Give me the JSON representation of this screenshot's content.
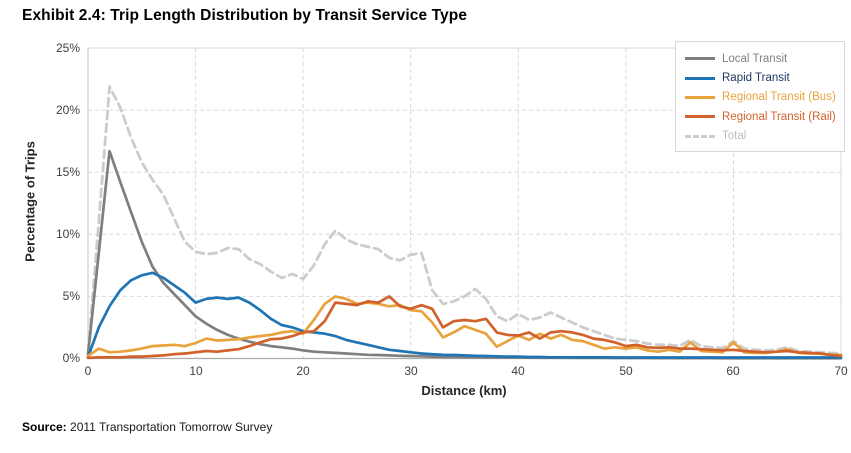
{
  "header": {
    "title": "Exhibit 2.4: Trip Length Distribution by Transit Service Type"
  },
  "axes": {
    "y": {
      "title": "Percentage of Trips",
      "tick_labels": [
        "0%",
        "5%",
        "10%",
        "15%",
        "20%",
        "25%"
      ]
    },
    "x": {
      "title": "Distance (km)",
      "tick_labels": [
        "0",
        "10",
        "20",
        "30",
        "40",
        "50",
        "60",
        "70"
      ]
    }
  },
  "legend": {
    "items": [
      {
        "label": "Local Transit",
        "line_color": "#7F7F7F",
        "label_color": "#808080",
        "dash": false
      },
      {
        "label": "Rapid Transit",
        "line_color": "#1F74B5",
        "label_color": "#1F3864",
        "dash": false
      },
      {
        "label": "Regional Transit (Bus)",
        "line_color": "#E8A33D",
        "label_color": "#E8A33D",
        "dash": false
      },
      {
        "label": "Regional Transit (Rail)",
        "line_color": "#D2622B",
        "label_color": "#D2622B",
        "dash": false
      },
      {
        "label": "Total",
        "line_color": "#CCCCCC",
        "label_color": "#BFBFBF",
        "dash": true
      }
    ]
  },
  "footer": {
    "source_label": "Source:",
    "source_text": " 2011 Transportation Tomorrow Survey"
  },
  "colors": {
    "grid": "#DADADA",
    "zero_axis": "#ABABAB",
    "side_axis": "#C6C6C6",
    "tick_text": "#404040"
  },
  "chart_data": {
    "type": "line",
    "title": "Exhibit 2.4: Trip Length Distribution by Transit Service Type",
    "xlabel": "Distance (km)",
    "ylabel": "Percentage of Trips",
    "xlim": [
      0,
      70
    ],
    "ylim": [
      0,
      25
    ],
    "y_unit": "%",
    "x_ticks": [
      0,
      10,
      20,
      30,
      40,
      50,
      60,
      70
    ],
    "y_ticks": [
      0,
      5,
      10,
      15,
      20,
      25
    ],
    "grid": true,
    "legend_position": "top-right",
    "x_km": [
      0,
      1,
      2,
      3,
      4,
      5,
      6,
      7,
      8,
      9,
      10,
      11,
      12,
      13,
      14,
      15,
      16,
      17,
      18,
      19,
      20,
      21,
      22,
      23,
      24,
      25,
      26,
      27,
      28,
      29,
      30,
      31,
      32,
      33,
      34,
      35,
      36,
      37,
      38,
      39,
      40,
      41,
      42,
      43,
      44,
      45,
      46,
      47,
      48,
      49,
      50,
      51,
      52,
      53,
      54,
      55,
      56,
      57,
      58,
      59,
      60,
      61,
      62,
      63,
      64,
      65,
      66,
      67,
      68,
      69,
      70
    ],
    "draw_order": [
      4,
      0,
      1,
      2,
      3
    ],
    "series": [
      {
        "name": "Local Transit",
        "color": "#7F7F7F",
        "dash": false,
        "width": 2.7,
        "values": [
          0.3,
          8.5,
          16.7,
          14.2,
          11.8,
          9.4,
          7.4,
          6.1,
          5.2,
          4.3,
          3.4,
          2.8,
          2.3,
          1.9,
          1.6,
          1.35,
          1.15,
          1.0,
          0.9,
          0.8,
          0.65,
          0.55,
          0.5,
          0.45,
          0.4,
          0.35,
          0.3,
          0.28,
          0.25,
          0.22,
          0.2,
          0.18,
          0.15,
          0.13,
          0.12,
          0.1,
          0.1,
          0.09,
          0.08,
          0.08,
          0.07,
          0.07,
          0.06,
          0.06,
          0.06,
          0.05,
          0.05,
          0.05,
          0.05,
          0.04,
          0.04,
          0.04,
          0.04,
          0.03,
          0.03,
          0.03,
          0.03,
          0.03,
          0.03,
          0.02,
          0.02,
          0.02,
          0.02,
          0.02,
          0.02,
          0.02,
          0.02,
          0.02,
          0.02,
          0.02,
          0.02
        ]
      },
      {
        "name": "Rapid Transit",
        "color": "#1F74B5",
        "dash": false,
        "width": 2.7,
        "values": [
          0.1,
          2.5,
          4.2,
          5.5,
          6.3,
          6.7,
          6.9,
          6.5,
          5.9,
          5.3,
          4.5,
          4.8,
          4.9,
          4.8,
          4.9,
          4.5,
          3.9,
          3.2,
          2.7,
          2.5,
          2.2,
          2.1,
          2.0,
          1.8,
          1.5,
          1.3,
          1.1,
          0.9,
          0.7,
          0.6,
          0.5,
          0.4,
          0.35,
          0.3,
          0.28,
          0.25,
          0.22,
          0.2,
          0.18,
          0.15,
          0.15,
          0.12,
          0.12,
          0.1,
          0.1,
          0.1,
          0.1,
          0.1,
          0.1,
          0.08,
          0.08,
          0.08,
          0.08,
          0.08,
          0.08,
          0.08,
          0.08,
          0.08,
          0.08,
          0.08,
          0.08,
          0.08,
          0.08,
          0.08,
          0.08,
          0.08,
          0.08,
          0.08,
          0.08,
          0.08,
          0.08
        ]
      },
      {
        "name": "Regional Transit (Bus)",
        "color": "#E8A33D",
        "dash": false,
        "width": 2.7,
        "values": [
          0.2,
          0.8,
          0.5,
          0.55,
          0.65,
          0.8,
          1.0,
          1.05,
          1.1,
          1.0,
          1.25,
          1.6,
          1.45,
          1.5,
          1.55,
          1.7,
          1.8,
          1.9,
          2.1,
          2.2,
          2.0,
          3.1,
          4.4,
          5.0,
          4.8,
          4.4,
          4.5,
          4.4,
          4.2,
          4.3,
          3.9,
          3.8,
          2.9,
          1.7,
          2.1,
          2.6,
          2.3,
          2.0,
          0.95,
          1.4,
          1.85,
          1.5,
          2.0,
          1.6,
          1.9,
          1.5,
          1.4,
          1.1,
          0.8,
          0.9,
          0.8,
          0.9,
          0.65,
          0.55,
          0.7,
          0.55,
          1.3,
          0.6,
          0.55,
          0.5,
          1.3,
          0.5,
          0.45,
          0.45,
          0.55,
          0.75,
          0.45,
          0.4,
          0.4,
          0.3,
          0.3
        ]
      },
      {
        "name": "Regional Transit (Rail)",
        "color": "#D2622B",
        "dash": false,
        "width": 2.7,
        "values": [
          0.05,
          0.1,
          0.1,
          0.1,
          0.15,
          0.15,
          0.2,
          0.25,
          0.35,
          0.4,
          0.5,
          0.6,
          0.55,
          0.65,
          0.75,
          1.0,
          1.3,
          1.55,
          1.6,
          1.8,
          2.1,
          2.2,
          3.0,
          4.5,
          4.4,
          4.3,
          4.6,
          4.5,
          5.0,
          4.2,
          4.0,
          4.3,
          4.0,
          2.5,
          3.0,
          3.1,
          3.0,
          3.2,
          2.1,
          1.9,
          1.85,
          2.1,
          1.6,
          2.1,
          2.2,
          2.1,
          1.9,
          1.6,
          1.5,
          1.3,
          1.0,
          1.1,
          0.9,
          0.85,
          0.9,
          0.8,
          0.8,
          0.75,
          0.7,
          0.65,
          0.7,
          0.6,
          0.55,
          0.5,
          0.55,
          0.6,
          0.5,
          0.45,
          0.4,
          0.3,
          0.2
        ]
      },
      {
        "name": "Total",
        "color": "#CCCCCC",
        "dash": true,
        "width": 2.8,
        "values": [
          0.5,
          11.0,
          21.9,
          20.2,
          17.8,
          15.8,
          14.4,
          13.2,
          11.3,
          9.4,
          8.6,
          8.4,
          8.5,
          8.9,
          8.8,
          8.0,
          7.6,
          7.0,
          6.5,
          6.8,
          6.4,
          7.5,
          9.2,
          10.3,
          9.6,
          9.2,
          9.0,
          8.8,
          8.1,
          7.9,
          8.35,
          8.5,
          5.5,
          4.4,
          4.6,
          5.0,
          5.6,
          4.8,
          3.4,
          3.0,
          3.6,
          3.1,
          3.3,
          3.7,
          3.3,
          2.9,
          2.5,
          2.2,
          1.9,
          1.6,
          1.5,
          1.4,
          1.2,
          1.1,
          1.1,
          1.0,
          1.5,
          1.0,
          0.9,
          0.85,
          1.4,
          0.8,
          0.7,
          0.65,
          0.7,
          0.9,
          0.6,
          0.55,
          0.5,
          0.45,
          0.4
        ]
      }
    ]
  }
}
